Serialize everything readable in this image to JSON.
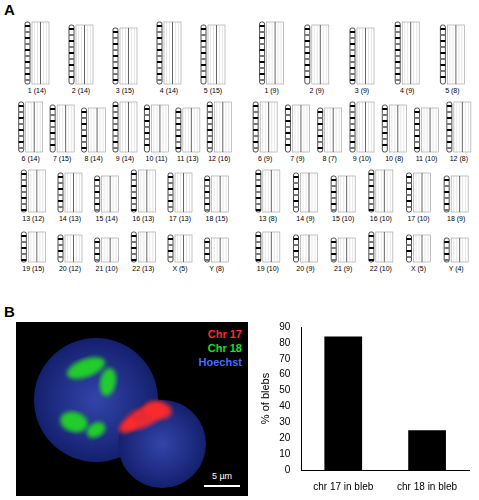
{
  "panel_labels": [
    "A",
    "B"
  ],
  "karyotypes": [
    [
      [
        "1 (14)",
        "2 (14)",
        "3 (15)",
        "4 (14)",
        "5 (15)"
      ],
      [
        "6 (14)",
        "7 (15)",
        "8 (14)",
        "9 (14)",
        "10 (11)",
        "11 (13)",
        "12 (16)"
      ],
      [
        "13 (12)",
        "14 (13)",
        "15 (14)",
        "16 (13)",
        "17 (13)",
        "18 (15)"
      ],
      [
        "19 (15)",
        "20 (12)",
        "21 (10)",
        "22 (13)",
        "X (5)",
        "Y (8)"
      ]
    ],
    [
      [
        "1 (9)",
        "2 (9)",
        "3 (9)",
        "4 (9)",
        "5 (8)"
      ],
      [
        "6 (9)",
        "7 (9)",
        "8 (7)",
        "9 (10)",
        "10 (8)",
        "11 (10)",
        "12 (8)"
      ],
      [
        "13 (8)",
        "14 (9)",
        "15 (10)",
        "16 (10)",
        "17 (10)",
        "18 (9)"
      ],
      [
        "19 (10)",
        "20 (9)",
        "21 (9)",
        "22 (10)",
        "X (5)",
        "Y (4)"
      ]
    ]
  ],
  "micrograph": {
    "legend": [
      {
        "text": "Chr 17",
        "color": "#ff2a2a"
      },
      {
        "text": "Chr 18",
        "color": "#22dd22"
      },
      {
        "text": "Hoechst",
        "color": "#4a6cff"
      }
    ],
    "scale_bar": "5 µm"
  },
  "chart_data": {
    "type": "bar",
    "categories": [
      "chr 17 in bleb",
      "chr 18 in bleb"
    ],
    "values": [
      84,
      25
    ],
    "color": "#000000",
    "y_label": "% of blebs",
    "ylim": [
      0,
      90
    ],
    "yticks": [
      0,
      10,
      20,
      30,
      40,
      50,
      60,
      70,
      80,
      90
    ],
    "grid": false
  }
}
